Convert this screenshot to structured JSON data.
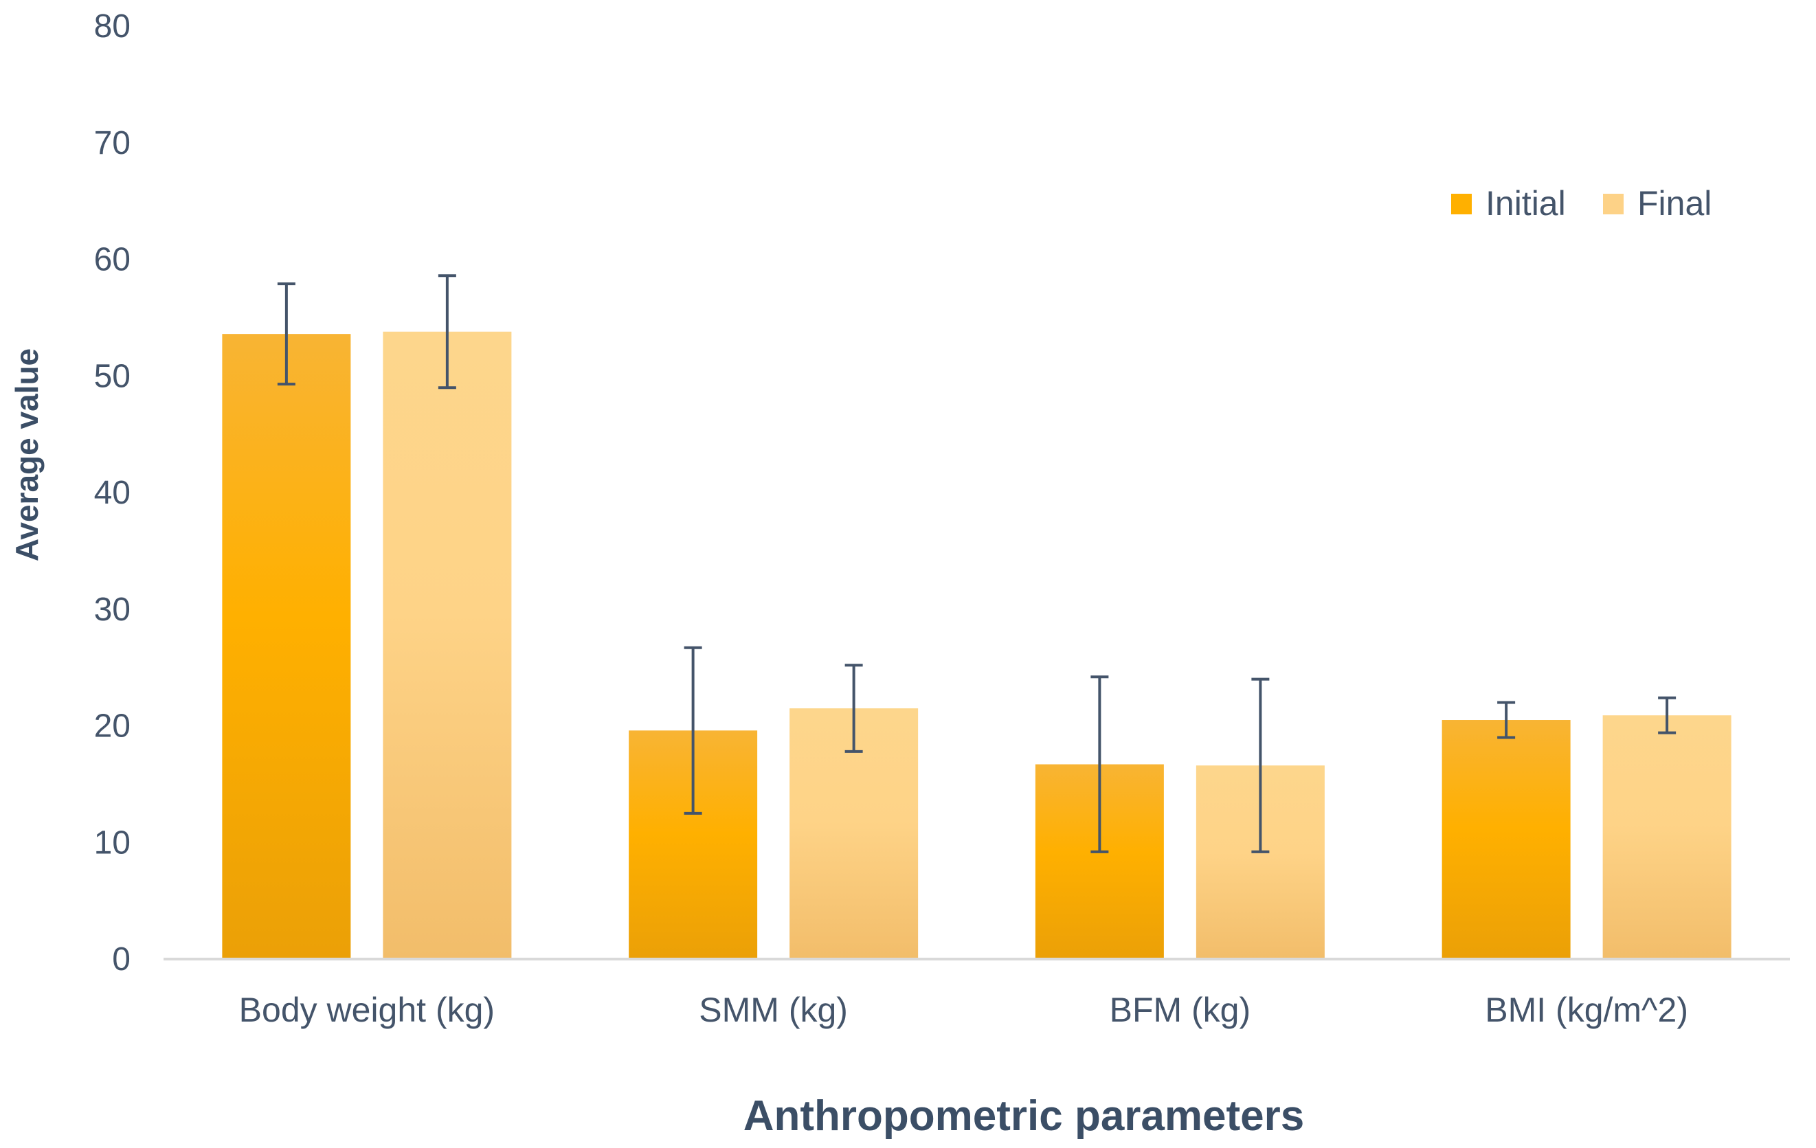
{
  "chart_data": {
    "type": "bar",
    "title": "",
    "xlabel": "Anthropometric parameters",
    "ylabel": "Average value",
    "ylim": [
      0,
      80
    ],
    "yticks": [
      0,
      10,
      20,
      30,
      40,
      50,
      60,
      70,
      80
    ],
    "grid": false,
    "legend_position": "top-right",
    "categories": [
      "Body weight (kg)",
      "SMM (kg)",
      "BFM (kg)",
      "BMI (kg/m^2)"
    ],
    "series": [
      {
        "name": "Initial",
        "color": "#ffb000",
        "values": [
          53.6,
          19.6,
          16.7,
          20.5
        ],
        "error": [
          4.3,
          7.1,
          7.5,
          1.5
        ]
      },
      {
        "name": "Final",
        "color": "#fdd287",
        "values": [
          53.8,
          21.5,
          16.6,
          20.9
        ],
        "error": [
          4.8,
          3.7,
          7.4,
          1.5
        ]
      }
    ]
  }
}
